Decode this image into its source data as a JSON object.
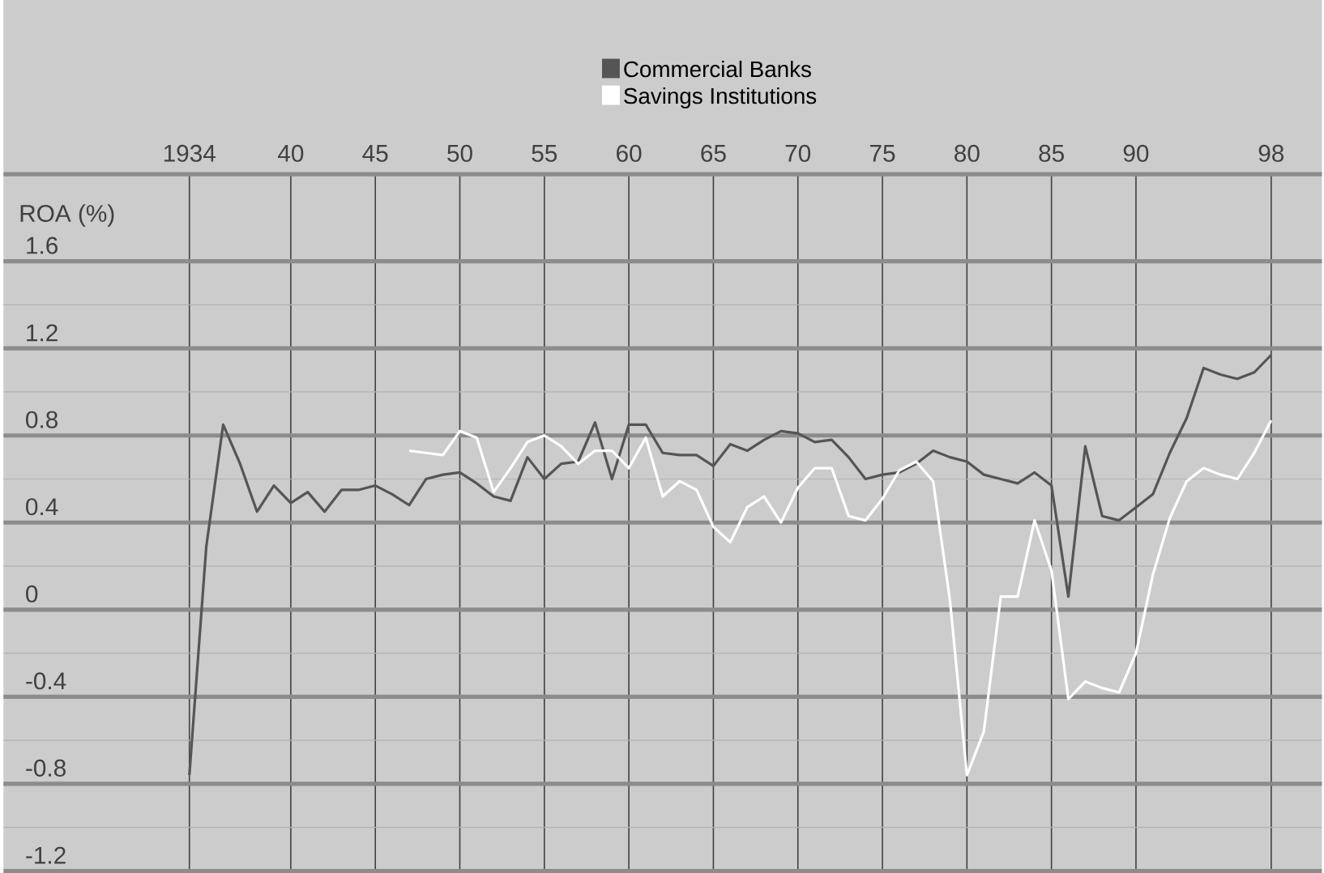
{
  "chart_data": {
    "type": "line",
    "ylabel": "ROA (%)",
    "xlim": [
      1923,
      2001
    ],
    "xticks": [
      {
        "value": 1934,
        "label": "1934"
      },
      {
        "value": 1940,
        "label": "40"
      },
      {
        "value": 1945,
        "label": "45"
      },
      {
        "value": 1950,
        "label": "50"
      },
      {
        "value": 1955,
        "label": "55"
      },
      {
        "value": 1960,
        "label": "60"
      },
      {
        "value": 1965,
        "label": "65"
      },
      {
        "value": 1970,
        "label": "70"
      },
      {
        "value": 1975,
        "label": "75"
      },
      {
        "value": 1980,
        "label": "80"
      },
      {
        "value": 1985,
        "label": "85"
      },
      {
        "value": 1990,
        "label": "90"
      },
      {
        "value": 1998,
        "label": "98"
      }
    ],
    "ylim": [
      -1.2,
      2.0
    ],
    "yticks": [
      -1.2,
      -0.8,
      -0.4,
      0,
      0.4,
      0.8,
      1.2,
      1.6
    ],
    "grid": true,
    "legend": "top",
    "marker": "none",
    "line_style": "solid",
    "series": [
      {
        "name": "Commercial Banks",
        "color": "#555555",
        "x": [
          1934,
          1935,
          1936,
          1937,
          1938,
          1939,
          1940,
          1941,
          1942,
          1943,
          1944,
          1945,
          1946,
          1947,
          1948,
          1949,
          1950,
          1951,
          1952,
          1953,
          1954,
          1955,
          1956,
          1957,
          1958,
          1959,
          1960,
          1961,
          1962,
          1963,
          1964,
          1965,
          1966,
          1967,
          1968,
          1969,
          1970,
          1971,
          1972,
          1973,
          1974,
          1975,
          1976,
          1977,
          1978,
          1979,
          1980,
          1981,
          1982,
          1983,
          1984,
          1985,
          1986,
          1987,
          1988,
          1989,
          1990,
          1991,
          1992,
          1993,
          1994,
          1995,
          1996,
          1997,
          1998
        ],
        "values": [
          -0.76,
          0.29,
          0.85,
          0.67,
          0.45,
          0.57,
          0.49,
          0.54,
          0.45,
          0.55,
          0.55,
          0.57,
          0.53,
          0.48,
          0.6,
          0.62,
          0.63,
          0.58,
          0.52,
          0.5,
          0.7,
          0.6,
          0.67,
          0.68,
          0.86,
          0.6,
          0.85,
          0.85,
          0.72,
          0.71,
          0.71,
          0.66,
          0.76,
          0.73,
          0.78,
          0.82,
          0.81,
          0.77,
          0.78,
          0.7,
          0.6,
          0.62,
          0.63,
          0.67,
          0.73,
          0.7,
          0.68,
          0.62,
          0.6,
          0.58,
          0.63,
          0.57,
          0.06,
          0.75,
          0.43,
          0.41,
          0.47,
          0.53,
          0.72,
          0.88,
          1.11,
          1.08,
          1.06,
          1.09,
          1.17
        ]
      },
      {
        "name": "Savings Institutions",
        "color": "#ffffff",
        "x": [
          1947,
          1948,
          1949,
          1950,
          1951,
          1952,
          1953,
          1954,
          1955,
          1956,
          1957,
          1958,
          1959,
          1960,
          1961,
          1962,
          1963,
          1964,
          1965,
          1966,
          1967,
          1968,
          1969,
          1970,
          1971,
          1972,
          1973,
          1974,
          1975,
          1976,
          1977,
          1978,
          1979,
          1980,
          1981,
          1982,
          1983,
          1984,
          1985,
          1986,
          1987,
          1988,
          1989,
          1990,
          1991,
          1992,
          1993,
          1994,
          1995,
          1996,
          1997,
          1998
        ],
        "values": [
          0.73,
          0.72,
          0.71,
          0.82,
          0.79,
          0.54,
          0.65,
          0.77,
          0.8,
          0.75,
          0.67,
          0.73,
          0.73,
          0.65,
          0.79,
          0.52,
          0.59,
          0.55,
          0.38,
          0.31,
          0.47,
          0.52,
          0.4,
          0.56,
          0.65,
          0.65,
          0.43,
          0.41,
          0.51,
          0.64,
          0.68,
          0.59,
          0.04,
          -0.76,
          -0.56,
          0.06,
          0.06,
          0.41,
          0.18,
          -0.41,
          -0.33,
          -0.36,
          -0.38,
          -0.2,
          0.16,
          0.42,
          0.59,
          0.65,
          0.62,
          0.6,
          0.72,
          0.87
        ]
      }
    ]
  }
}
